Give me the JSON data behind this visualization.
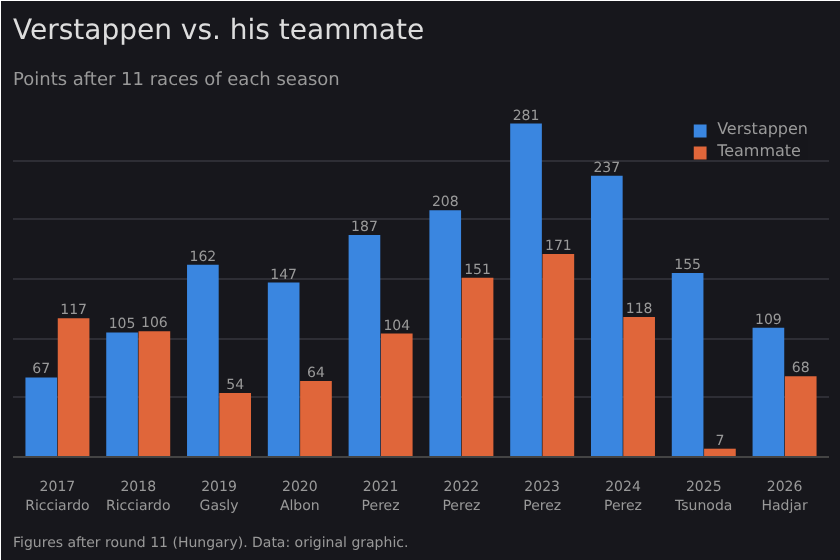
{
  "chart_data": {
    "type": "bar",
    "title": "Verstappen vs. his teammate",
    "subtitle": "Points after 11 races of each season",
    "categories": [
      "2017\nRicciardo",
      "2018\nRicciardo",
      "2019\nGasly",
      "2020\nAlbon",
      "2021\nPerez",
      "2022\nPerez",
      "2023\nPerez",
      "2024\nPerez",
      "2025\nTsunoda",
      "2026\nHadjar"
    ],
    "series": [
      {
        "name": "Verstappen",
        "color": "#3a86e0",
        "values": [
          67,
          105,
          162,
          147,
          187,
          208,
          281,
          237,
          155,
          109
        ]
      },
      {
        "name": "Teammate",
        "color": "#e0663a",
        "values": [
          117,
          106,
          54,
          64,
          104,
          151,
          171,
          118,
          7,
          68
        ]
      }
    ],
    "ylim": [
      0,
      300
    ],
    "yticks": [
      {
        "value": 0,
        "label": null
      },
      {
        "value": 50,
        "label": null
      },
      {
        "value": 100,
        "label": null
      },
      {
        "value": 150,
        "label": null
      },
      {
        "value": 200,
        "label": null
      },
      {
        "value": 250,
        "label": null
      },
      {
        "value": 300,
        "label": null
      }
    ],
    "tick_labels": "x",
    "grid": "y",
    "legend": "top right",
    "data_labels": true,
    "annotations": [
      "Figures after round 11 (Hungary). Data: original graphic."
    ]
  }
}
